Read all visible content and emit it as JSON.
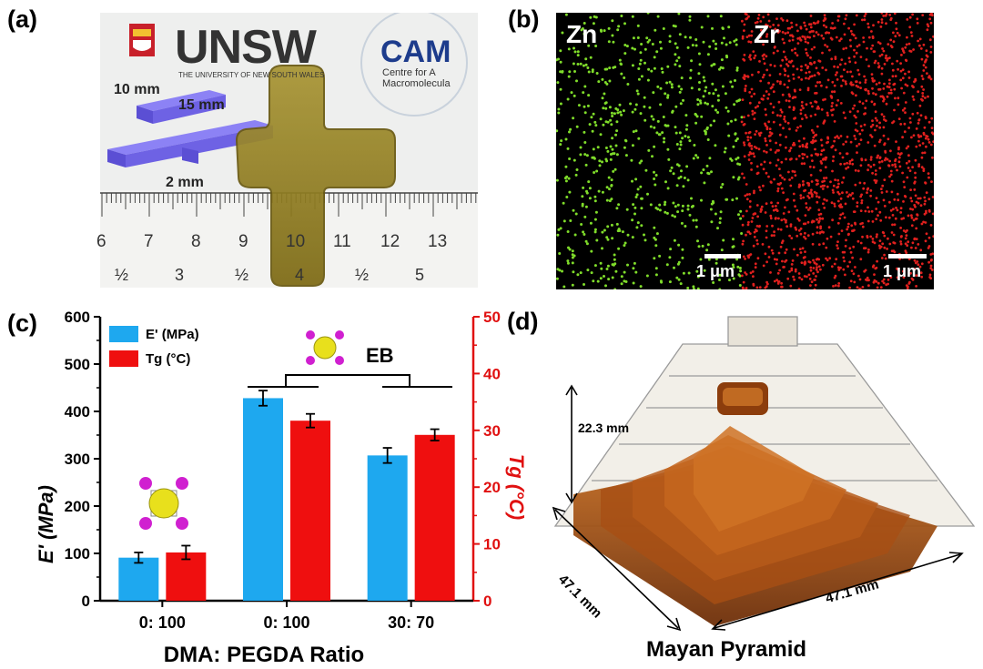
{
  "panels": {
    "a": {
      "label": "(a)",
      "logo_unsw": "UNSW",
      "logo_unsw_sub": "THE UNIVERSITY OF NEW SOUTH WALES",
      "logo_cam": "CAM",
      "logo_cam_sub1": "Centre for A",
      "logo_cam_sub2": "Macromolecula",
      "dim_10": "10 mm",
      "dim_15": "15 mm",
      "dim_2": "2 mm",
      "ruler_cm": [
        "6",
        "7",
        "8",
        "9",
        "10",
        "11",
        "12",
        "13"
      ],
      "ruler_in": [
        "½",
        "3",
        "½",
        "4",
        "½",
        "5"
      ]
    },
    "b": {
      "label": "(b)",
      "zn": "Zn",
      "zr": "Zr",
      "scale_left": "1 μm",
      "scale_right": "1 μm",
      "colors": {
        "zn": "#7fdc2a",
        "zr": "#e0201e"
      }
    },
    "c": {
      "label": "(c)",
      "eb": "EB",
      "ylabel_left": "E' (MPa)",
      "ylabel_right": "Tg (°C)",
      "xlabel": "DMA: PEGDA Ratio"
    },
    "d": {
      "label": "(d)",
      "height": "22.3 mm",
      "width_left": "47.1 mm",
      "width_right": "47.1 mm",
      "caption": "Mayan Pyramid"
    }
  },
  "chart_data": {
    "type": "bar",
    "categories": [
      "0: 100",
      "0: 100",
      "30: 70"
    ],
    "series": [
      {
        "name": "E' (MPa)",
        "axis": "left",
        "color": "#1ea8ef",
        "values": [
          91,
          428,
          307
        ],
        "errors": [
          11,
          16,
          16
        ]
      },
      {
        "name": "Tg (°C)",
        "axis": "right",
        "color": "#ef0f0f",
        "values": [
          8.5,
          31.7,
          29.2
        ],
        "errors": [
          1.2,
          1.2,
          1.0
        ]
      }
    ],
    "ylim_left": [
      0,
      600
    ],
    "yticks_left": [
      0,
      100,
      200,
      300,
      400,
      500,
      600
    ],
    "ylim_right": [
      0,
      50
    ],
    "yticks_right": [
      0,
      10,
      20,
      30,
      40,
      50
    ],
    "legend_position": "top-left",
    "grid": false
  }
}
